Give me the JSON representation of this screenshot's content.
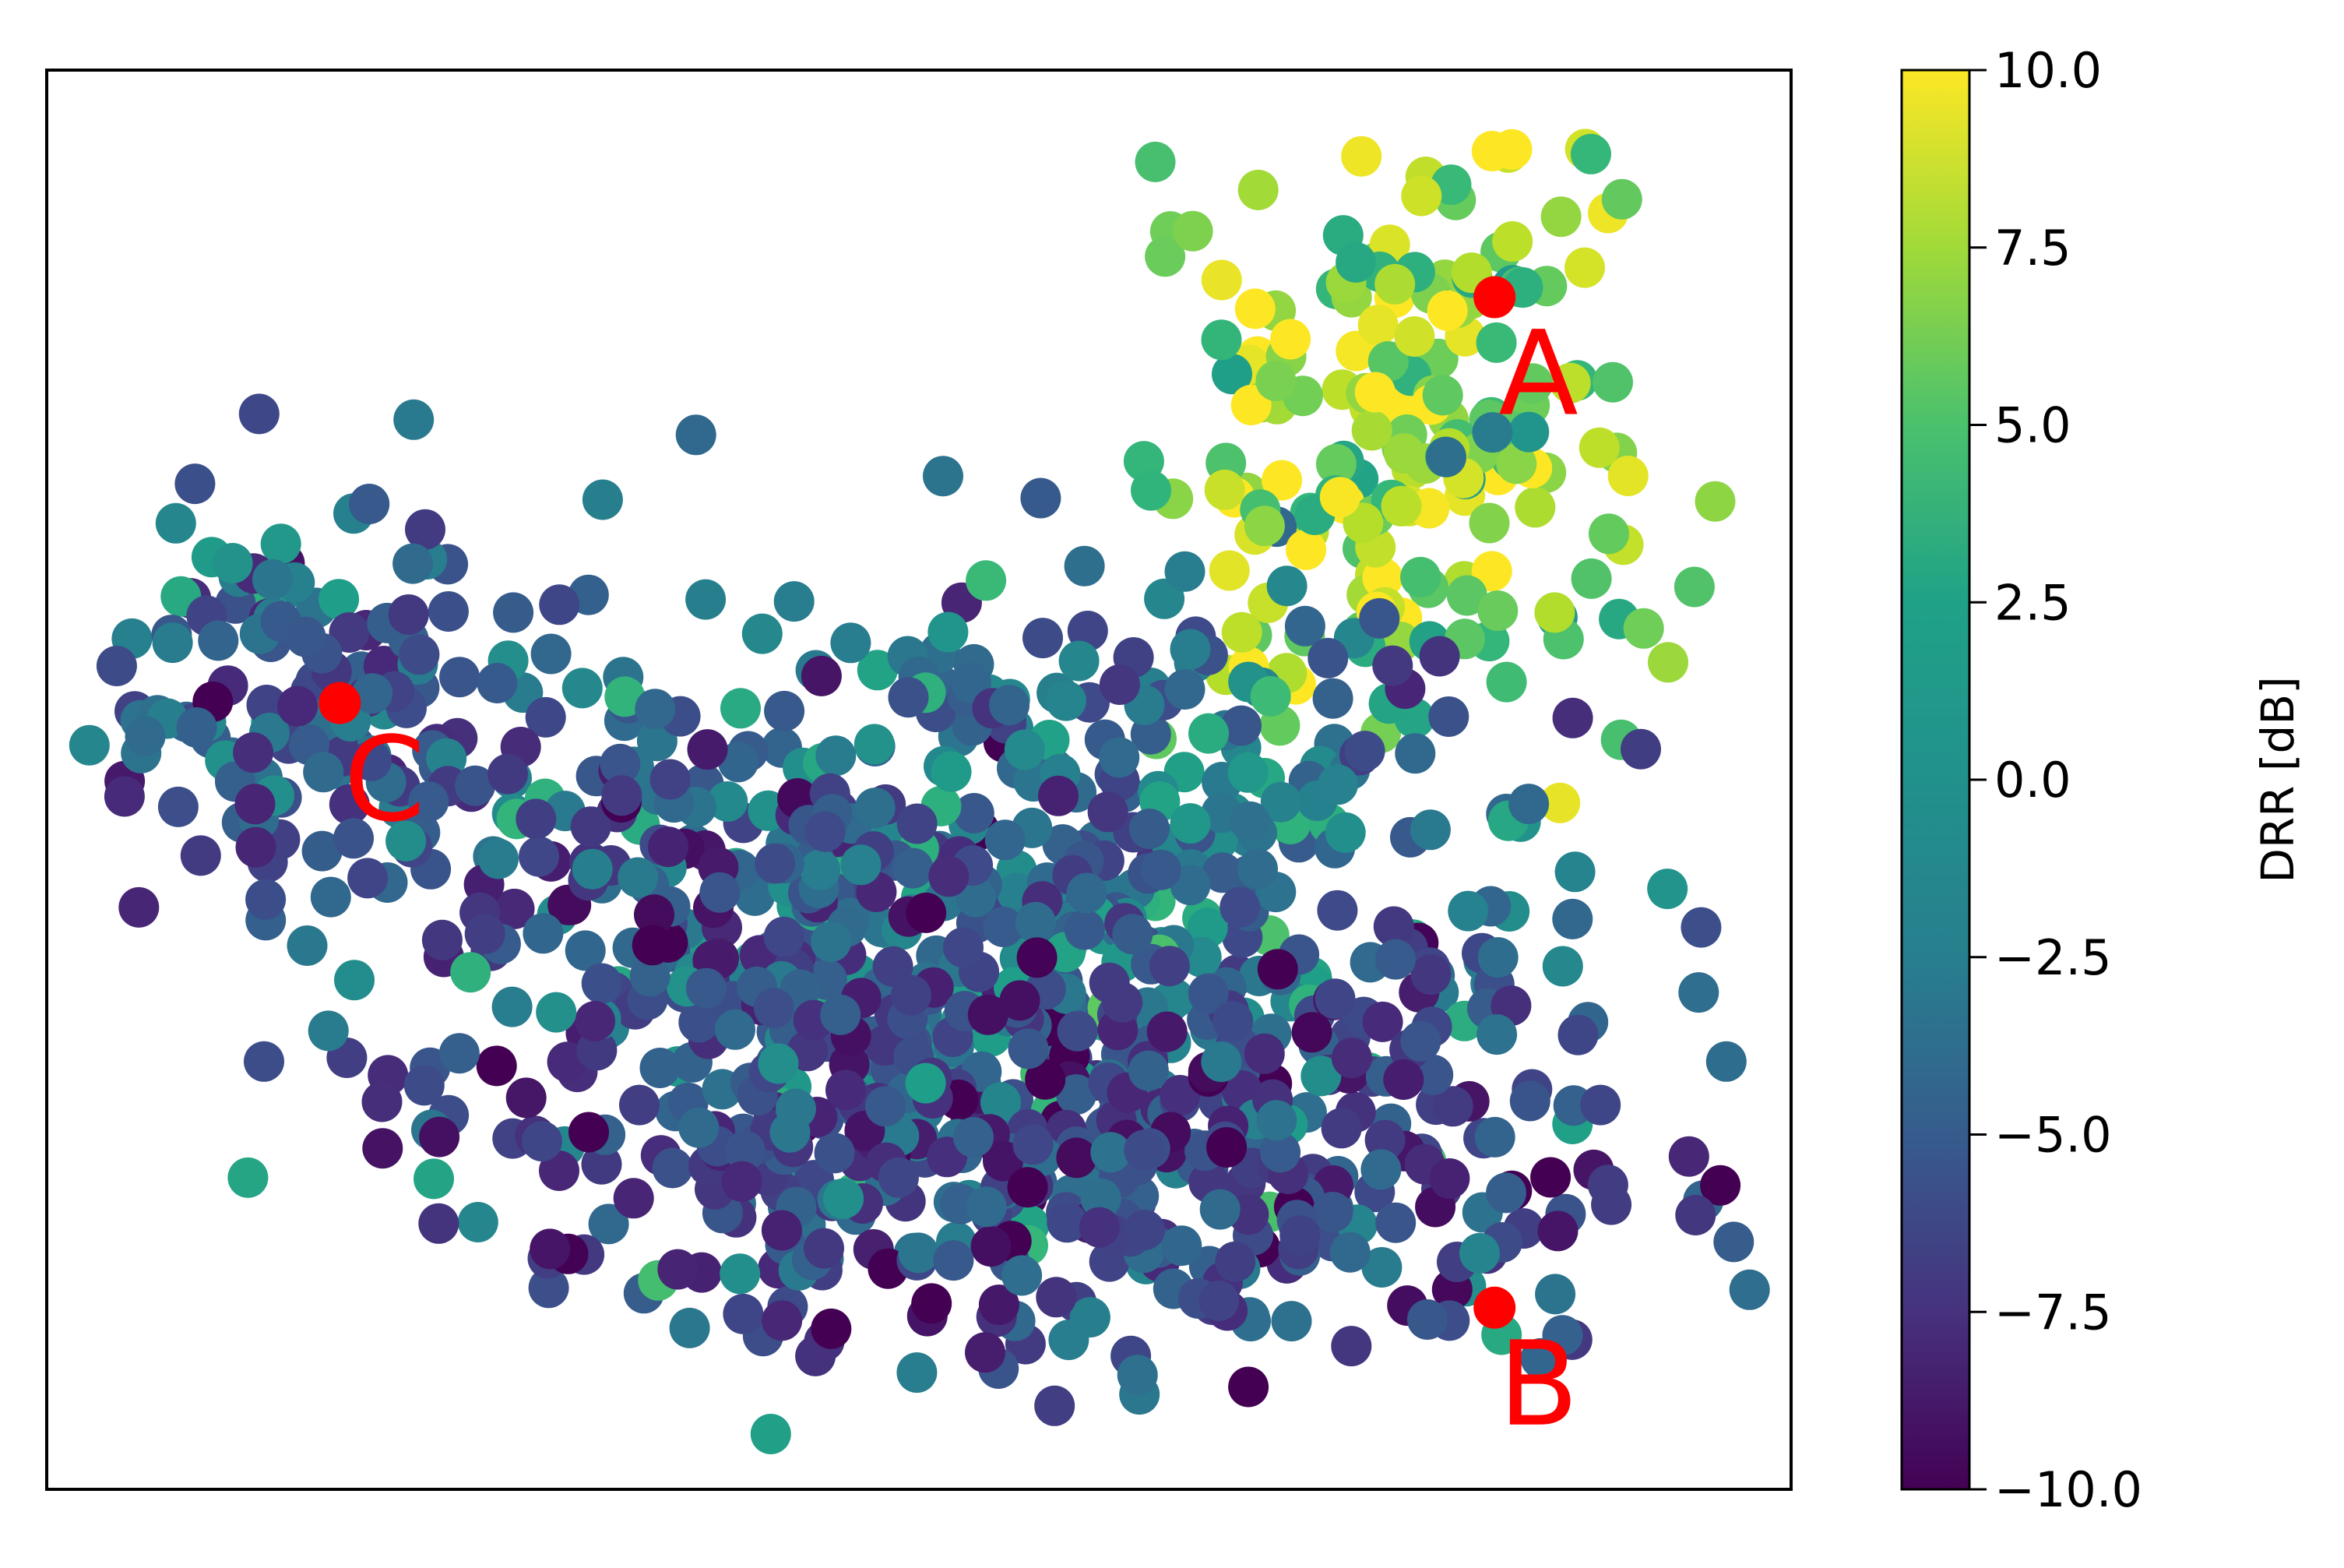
{
  "chart_data": {
    "type": "scatter",
    "title": "",
    "xlabel": "",
    "ylabel": "",
    "x_ticks_shown": false,
    "y_ticks_shown": false,
    "xlim": [
      0,
      100
    ],
    "ylim": [
      0,
      100
    ],
    "colorbar": {
      "label": "DRR [dB]",
      "range": [
        -10,
        10
      ],
      "ticks": [
        -10,
        -7.5,
        -5,
        -2.5,
        0,
        2.5,
        5,
        7.5,
        10
      ],
      "tick_labels": [
        "−10.0",
        "−7.5",
        "−5.0",
        "−2.5",
        "0.0",
        "2.5",
        "5.0",
        "7.5",
        "10.0"
      ],
      "colormap": "viridis",
      "position": "right"
    },
    "highlighted_points": [
      {
        "label": "A",
        "x": 83.0,
        "y": 84.0,
        "color": "#ff0000"
      },
      {
        "label": "B",
        "x": 83.0,
        "y": 12.8,
        "color": "#ff0000"
      },
      {
        "label": "C",
        "x": 16.8,
        "y": 55.4,
        "color": "#ff0000"
      }
    ],
    "clusters": [
      {
        "region": "top-right",
        "cx": 78,
        "cy": 74,
        "sx": 7.5,
        "sy": 10,
        "n": 190,
        "drr_mean": 6.5,
        "drr_sd": 3.0
      },
      {
        "region": "upper-left band",
        "cx": 15,
        "cy": 55,
        "sx": 7,
        "sy": 7,
        "n": 140,
        "drr_mean": -4.5,
        "drr_sd": 2.8
      },
      {
        "region": "center",
        "cx": 58,
        "cy": 40,
        "sx": 14,
        "sy": 12,
        "n": 480,
        "drr_mean": -2.5,
        "drr_sd": 3.0
      },
      {
        "region": "lower-middle",
        "cx": 60,
        "cy": 24,
        "sx": 16,
        "sy": 8,
        "n": 380,
        "drr_mean": -6.0,
        "drr_sd": 2.4
      },
      {
        "region": "mid-left",
        "cx": 36,
        "cy": 40,
        "sx": 10,
        "sy": 9,
        "n": 170,
        "drr_mean": -5.0,
        "drr_sd": 3.0
      }
    ],
    "grid": false,
    "legend": "none"
  }
}
